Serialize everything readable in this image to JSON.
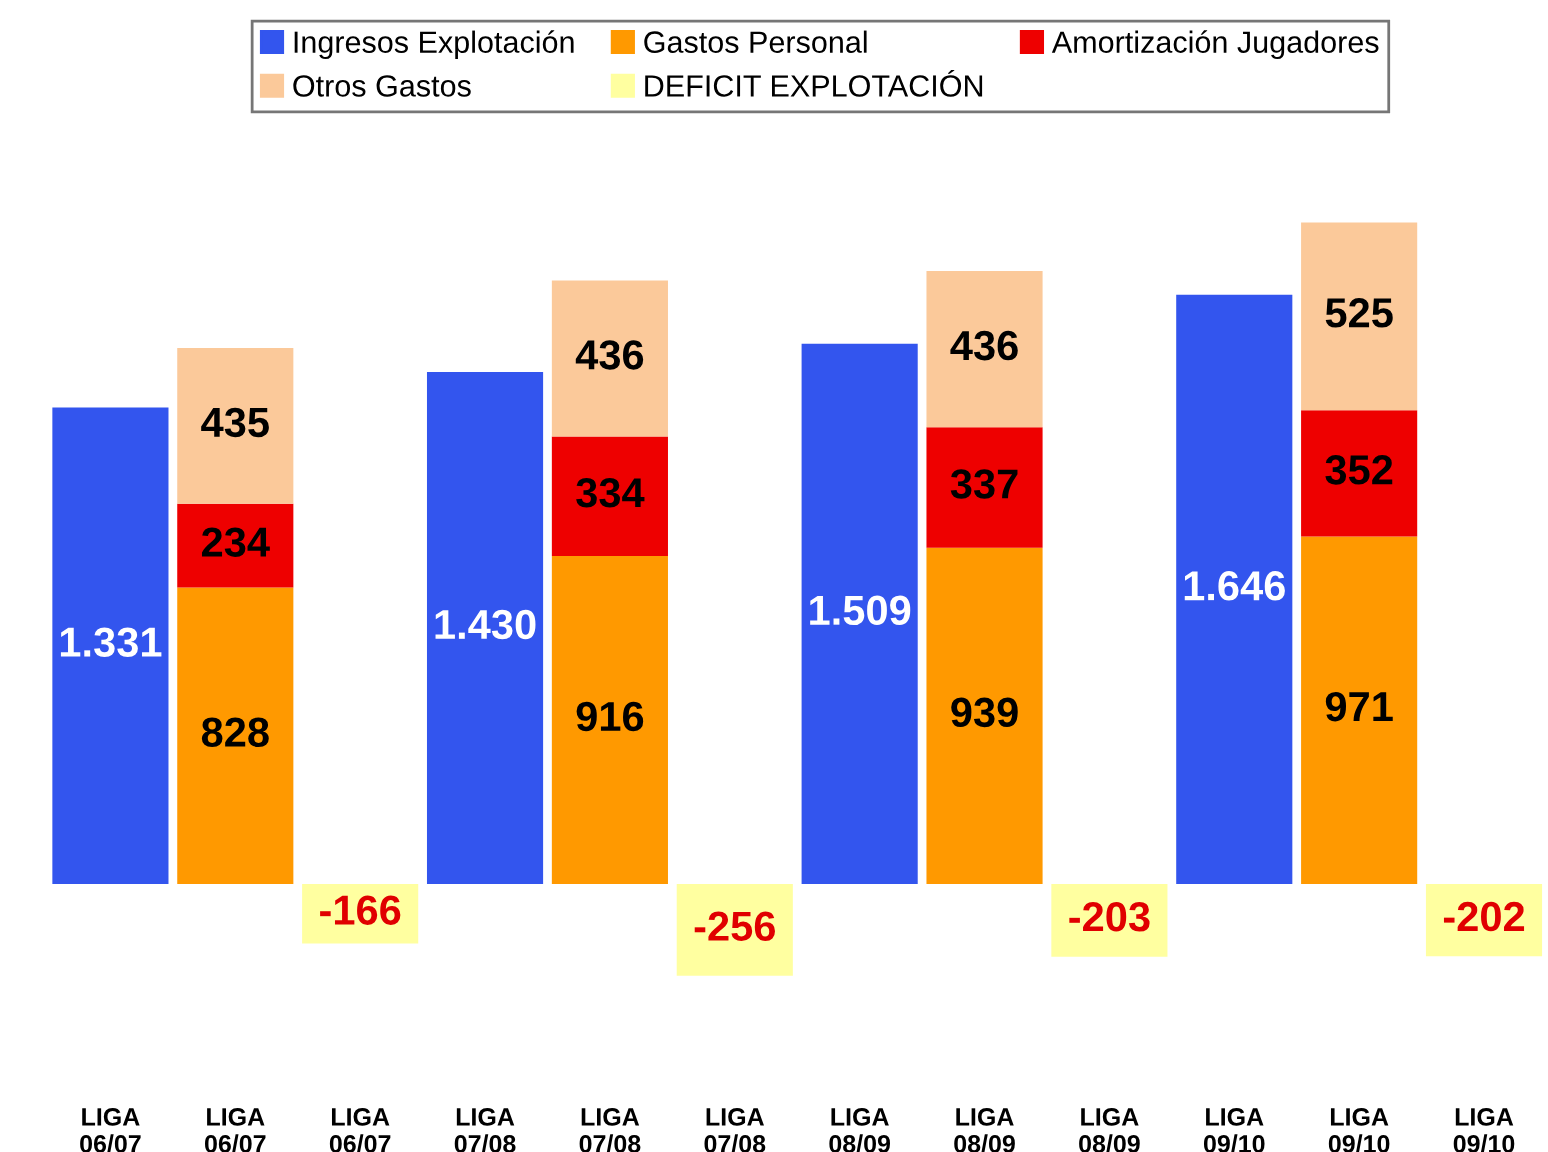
{
  "chart_data": {
    "type": "bar",
    "stacked": true,
    "legend": "top",
    "categories": [
      "LIGA\n06/07",
      "LIGA\n06/07",
      "LIGA\n06/07",
      "LIGA\n07/08",
      "LIGA\n07/08",
      "LIGA\n07/08",
      "LIGA\n08/09",
      "LIGA\n08/09",
      "LIGA\n08/09",
      "LIGA\n09/10",
      "LIGA\n09/10",
      "LIGA\n09/10"
    ],
    "series": [
      {
        "name": "Ingresos Explotación",
        "color": "#3355ee",
        "values": [
          1331,
          null,
          null,
          1430,
          null,
          null,
          1509,
          null,
          null,
          1646,
          null,
          null
        ],
        "value_labels": [
          "1.331",
          null,
          null,
          "1.430",
          null,
          null,
          "1.509",
          null,
          null,
          "1.646",
          null,
          null
        ]
      },
      {
        "name": "Gastos Personal",
        "color": "#ff9900",
        "values": [
          null,
          828,
          null,
          null,
          916,
          null,
          null,
          939,
          null,
          null,
          971,
          null
        ],
        "value_labels": [
          null,
          "828",
          null,
          null,
          "916",
          null,
          null,
          "939",
          null,
          null,
          "971",
          null
        ]
      },
      {
        "name": "Amortización Jugadores",
        "color": "#ee0000",
        "values": [
          null,
          234,
          null,
          null,
          334,
          null,
          null,
          337,
          null,
          null,
          352,
          null
        ],
        "value_labels": [
          null,
          "234",
          null,
          null,
          "334",
          null,
          null,
          "337",
          null,
          null,
          "352",
          null
        ]
      },
      {
        "name": "Otros Gastos",
        "color": "#fbc99a",
        "values": [
          null,
          435,
          null,
          null,
          436,
          null,
          null,
          436,
          null,
          null,
          525,
          null
        ],
        "value_labels": [
          null,
          "435",
          null,
          null,
          "436",
          null,
          null,
          "436",
          null,
          null,
          "525",
          null
        ]
      },
      {
        "name": "DEFICIT EXPLOTACIÓN",
        "color": "#ffffa0",
        "values": [
          null,
          null,
          -166,
          null,
          null,
          -256,
          null,
          null,
          -203,
          null,
          null,
          -202
        ],
        "value_labels": [
          null,
          null,
          "-166",
          null,
          null,
          "-256",
          null,
          null,
          "-203",
          null,
          null,
          "-202"
        ]
      }
    ]
  }
}
